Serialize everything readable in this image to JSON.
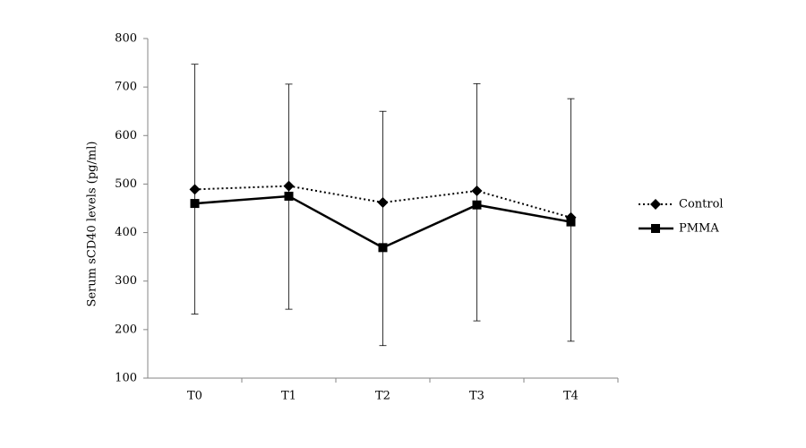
{
  "chart_data": {
    "type": "line",
    "y_label": "Serum sCD40 levels (pg/ml)",
    "categories": [
      "T0",
      "T1",
      "T2",
      "T3",
      "T4"
    ],
    "series": [
      {
        "name": "Control",
        "color": "#000000",
        "style": "dotted",
        "marker": "diamond",
        "values": [
          489,
          496,
          462,
          486,
          431
        ]
      },
      {
        "name": "PMMA",
        "color": "#000000",
        "style": "solid",
        "marker": "square",
        "values": [
          460,
          475,
          369,
          457,
          422
        ]
      }
    ],
    "error_bars": {
      "low": [
        232,
        242,
        167,
        218,
        176
      ],
      "high": [
        747,
        706,
        650,
        707,
        676
      ]
    },
    "ylim": [
      100,
      800
    ],
    "yticks": [
      100,
      200,
      300,
      400,
      500,
      600,
      700,
      800
    ],
    "legend": "right"
  }
}
